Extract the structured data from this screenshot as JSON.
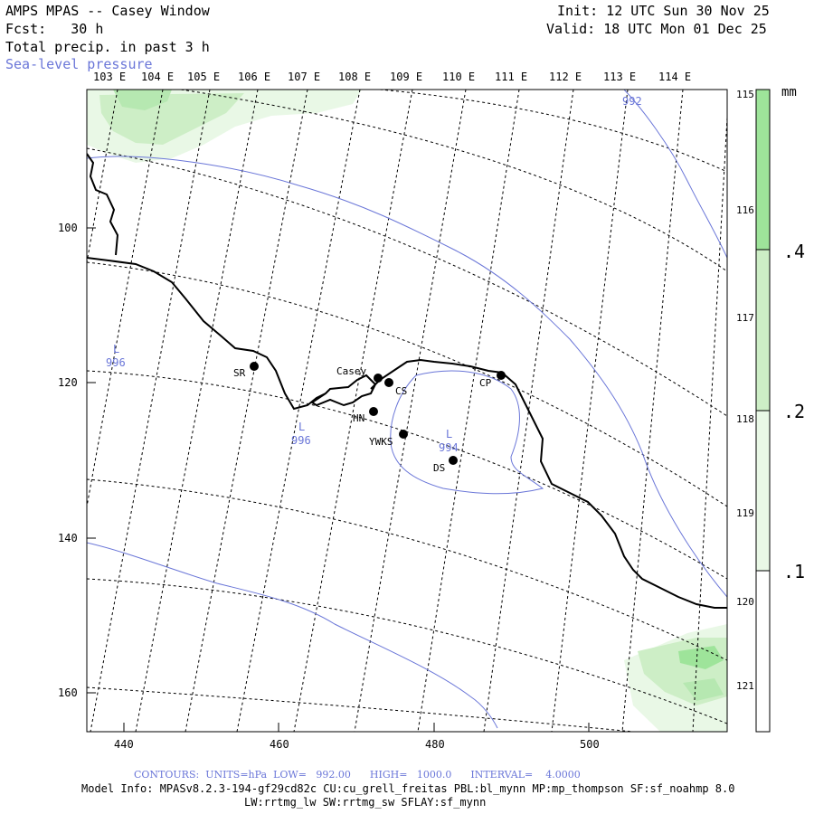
{
  "header": {
    "title": "AMPS MPAS -- Casey Window",
    "fcst": "Fcst:   30 h",
    "field": "Total precip. in past 3 h",
    "overlay": "Sea-level pressure",
    "init": "Init: 12 UTC Sun 30 Nov 25",
    "valid": "Valid: 18 UTC Mon 01 Dec 25"
  },
  "colors": {
    "contour": "#6a76d8",
    "precip_light": "#e9f8e6",
    "precip_mid": "#cdeec6",
    "precip_dark": "#9ee49a"
  },
  "lon_labels_top": [
    "103 E",
    "104 E",
    "105 E",
    "106 E",
    "107 E",
    "108 E",
    "109 E",
    "110 E",
    "111 E",
    "112 E",
    "113 E",
    "114 E"
  ],
  "lon_labels_right": [
    "115 E",
    "116 E",
    "117 E",
    "118 E",
    "119 E",
    "120 E",
    "121 E"
  ],
  "x_ticks": [
    "440",
    "460",
    "480",
    "500"
  ],
  "y_ticks": [
    "100",
    "120",
    "140",
    "160"
  ],
  "colorbar": {
    "unit": "mm",
    "levels": [
      ".1",
      ".2",
      ".4"
    ]
  },
  "stations": [
    {
      "code": "SR"
    },
    {
      "code": "Casey"
    },
    {
      "code": "CS"
    },
    {
      "code": "CP"
    },
    {
      "code": "HN"
    },
    {
      "code": "YWKS"
    },
    {
      "code": "DS"
    }
  ],
  "pressure_labels": [
    {
      "text": "992"
    },
    {
      "text": "L"
    },
    {
      "text": "996"
    },
    {
      "text": "L"
    },
    {
      "text": "996"
    },
    {
      "text": "L"
    },
    {
      "text": "994"
    }
  ],
  "footer": {
    "contours": "CONTOURS:  UNITS=hPa  LOW=   992.00      HIGH=   1000.0      INTERVAL=    4.0000",
    "model_info": "Model Info: MPASv8.2.3-194-gf29cd82c CU:cu_grell_freitas PBL:bl_mynn MP:mp_thompson SF:sf_noahmp 8.0",
    "model_info2": "LW:rrtmg_lw SW:rrtmg_sw SFLAY:sf_mynn"
  }
}
